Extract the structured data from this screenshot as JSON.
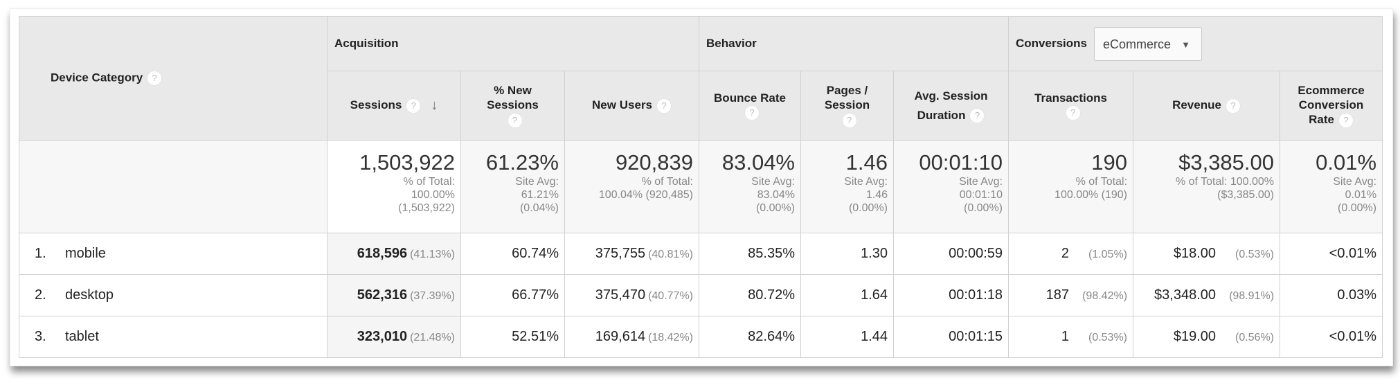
{
  "header": {
    "dimension": "Device Category",
    "groups": {
      "acquisition": "Acquisition",
      "behavior": "Behavior",
      "conversions": "Conversions"
    },
    "conversions_dropdown": {
      "selected": "eCommerce",
      "icon": "caret-down-icon"
    },
    "help_icon": "?",
    "sort_icon": "↓",
    "columns": [
      {
        "label_1": "Sessions",
        "label_2": ""
      },
      {
        "label_1": "% New",
        "label_2": "Sessions"
      },
      {
        "label_1": "New Users",
        "label_2": ""
      },
      {
        "label_1": "Bounce Rate",
        "label_2": ""
      },
      {
        "label_1": "Pages /",
        "label_2": "Session"
      },
      {
        "label_1": "Avg. Session",
        "label_2": "Duration"
      },
      {
        "label_1": "Transactions",
        "label_2": ""
      },
      {
        "label_1": "Revenue",
        "label_2": ""
      },
      {
        "label_1": "Ecommerce",
        "label_2": "Conversion",
        "label_3": "Rate"
      }
    ]
  },
  "summary": [
    {
      "value": "1,503,922",
      "l1": "% of Total:",
      "l2": "100.00%",
      "l3": "(1,503,922)"
    },
    {
      "value": "61.23%",
      "l1": "Site Avg:",
      "l2": "61.21%",
      "l3": "(0.04%)"
    },
    {
      "value": "920,839",
      "l1": "% of Total:",
      "l2": "100.04% (920,485)",
      "l3": ""
    },
    {
      "value": "83.04%",
      "l1": "Site Avg:",
      "l2": "83.04%",
      "l3": "(0.00%)"
    },
    {
      "value": "1.46",
      "l1": "Site Avg:",
      "l2": "1.46",
      "l3": "(0.00%)"
    },
    {
      "value": "00:01:10",
      "l1": "Site Avg:",
      "l2": "00:01:10",
      "l3": "(0.00%)"
    },
    {
      "value": "190",
      "l1": "% of Total:",
      "l2": "100.00% (190)",
      "l3": ""
    },
    {
      "value": "$3,385.00",
      "l1": "% of Total: 100.00%",
      "l2": "($3,385.00)",
      "l3": ""
    },
    {
      "value": "0.01%",
      "l1": "Site Avg:",
      "l2": "0.01%",
      "l3": "(0.00%)"
    }
  ],
  "rows": [
    {
      "index": "1.",
      "device": "mobile",
      "sessions": "618,596",
      "sessions_pct": "(41.13%)",
      "new_sessions_pct": "60.74%",
      "new_users": "375,755",
      "new_users_pct": "(40.81%)",
      "bounce_rate": "85.35%",
      "pages_session": "1.30",
      "avg_duration": "00:00:59",
      "transactions": "2",
      "transactions_pct": "(1.05%)",
      "revenue": "$18.00",
      "revenue_pct": "(0.53%)",
      "conversion_rate": "<0.01%"
    },
    {
      "index": "2.",
      "device": "desktop",
      "sessions": "562,316",
      "sessions_pct": "(37.39%)",
      "new_sessions_pct": "66.77%",
      "new_users": "375,470",
      "new_users_pct": "(40.77%)",
      "bounce_rate": "80.72%",
      "pages_session": "1.64",
      "avg_duration": "00:01:18",
      "transactions": "187",
      "transactions_pct": "(98.42%)",
      "revenue": "$3,348.00",
      "revenue_pct": "(98.91%)",
      "conversion_rate": "0.03%"
    },
    {
      "index": "3.",
      "device": "tablet",
      "sessions": "323,010",
      "sessions_pct": "(21.48%)",
      "new_sessions_pct": "52.51%",
      "new_users": "169,614",
      "new_users_pct": "(18.42%)",
      "bounce_rate": "82.64%",
      "pages_session": "1.44",
      "avg_duration": "00:01:15",
      "transactions": "1",
      "transactions_pct": "(0.53%)",
      "revenue": "$19.00",
      "revenue_pct": "(0.56%)",
      "conversion_rate": "<0.01%"
    }
  ]
}
